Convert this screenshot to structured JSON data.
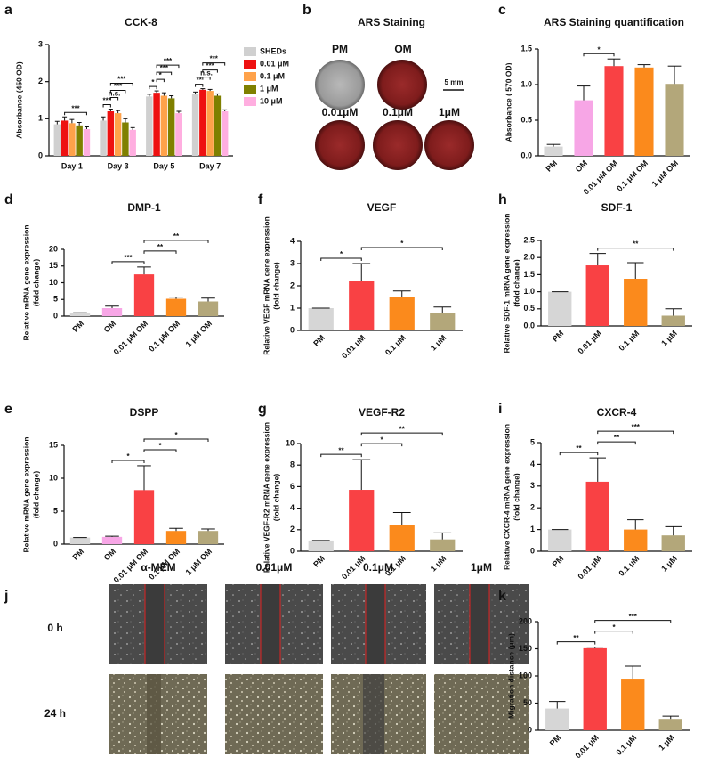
{
  "chart_data": [
    {
      "type": "grouped-bar",
      "panel": "a",
      "title": "CCK-8",
      "ylabel": [
        "Absorbance (450 OD)"
      ],
      "categories": [
        "Day 1",
        "Day 3",
        "Day 5",
        "Day 7"
      ],
      "series": [
        {
          "name": "SHEDs",
          "color": "#d0d0d0",
          "values": [
            0.85,
            0.95,
            1.6,
            1.68
          ],
          "errors": [
            0.08,
            0.1,
            0.06,
            0.04
          ]
        },
        {
          "name": "0.01 μM",
          "color": "#ee1111",
          "values": [
            0.95,
            1.2,
            1.7,
            1.78
          ],
          "errors": [
            0.1,
            0.06,
            0.05,
            0.03
          ]
        },
        {
          "name": "0.1 μM",
          "color": "#ffa24a",
          "values": [
            0.88,
            1.15,
            1.62,
            1.75
          ],
          "errors": [
            0.1,
            0.07,
            0.08,
            0.04
          ]
        },
        {
          "name": "1 μM",
          "color": "#7f8000",
          "values": [
            0.82,
            0.9,
            1.55,
            1.62
          ],
          "errors": [
            0.08,
            0.1,
            0.07,
            0.05
          ]
        },
        {
          "name": "10 μM",
          "color": "#ffaee0",
          "values": [
            0.72,
            0.7,
            1.15,
            1.2
          ],
          "errors": [
            0.06,
            0.06,
            0.05,
            0.04
          ]
        }
      ],
      "ylim": [
        0,
        3
      ],
      "yticks": [
        0,
        1,
        2,
        3
      ],
      "annotations": [
        {
          "label": "***",
          "category": "Day 1",
          "pair": [
            "0.01 μM",
            "10 μM"
          ]
        },
        {
          "label": "***",
          "category": "Day 3",
          "pair": [
            "SHEDs",
            "0.01 μM"
          ]
        },
        {
          "label": "n.s.",
          "category": "Day 3",
          "pair": [
            "0.01 μM",
            "0.1 μM"
          ]
        },
        {
          "label": "***",
          "category": "Day 3",
          "pair": [
            "0.01 μM",
            "1 μM"
          ]
        },
        {
          "label": "***",
          "category": "Day 3",
          "pair": [
            "0.01 μM",
            "10 μM"
          ]
        },
        {
          "label": "*",
          "category": "Day 5",
          "pair": [
            "SHEDs",
            "0.01 μM"
          ]
        },
        {
          "label": "*",
          "category": "Day 5",
          "pair": [
            "0.01 μM",
            "0.1 μM"
          ]
        },
        {
          "label": "***",
          "category": "Day 5",
          "pair": [
            "0.01 μM",
            "1 μM"
          ]
        },
        {
          "label": "***",
          "category": "Day 5",
          "pair": [
            "0.01 μM",
            "10 μM"
          ]
        },
        {
          "label": "**",
          "category": "Day 7",
          "pair": [
            "SHEDs",
            "0.01 μM"
          ]
        },
        {
          "label": "n.s.",
          "category": "Day 7",
          "pair": [
            "0.01 μM",
            "0.1 μM"
          ]
        },
        {
          "label": "***",
          "category": "Day 7",
          "pair": [
            "0.01 μM",
            "1 μM"
          ]
        },
        {
          "label": "***",
          "category": "Day 7",
          "pair": [
            "0.01 μM",
            "10 μM"
          ]
        }
      ]
    },
    {
      "type": "bar",
      "panel": "c",
      "title": "ARS Staining quantification",
      "ylabel": [
        "Absorbance ( 570 OD)"
      ],
      "categories": [
        "PM",
        "OM",
        "0.01 μM OM",
        "0.1 μM OM",
        "1 μM OM"
      ],
      "values": [
        0.13,
        0.78,
        1.26,
        1.24,
        1.01
      ],
      "errors": [
        0.03,
        0.2,
        0.1,
        0.04,
        0.25
      ],
      "colors": [
        "#d6d6d6",
        "#f7a6e6",
        "#f94144",
        "#fb8a1c",
        "#b3a77a"
      ],
      "ylim": [
        0,
        1.5
      ],
      "yticks": [
        {
          "value": 0,
          "label": "0.0"
        },
        0.5,
        {
          "value": 1,
          "label": "1.0"
        },
        1.5
      ],
      "annotations": [
        {
          "label": "*",
          "pair": [
            "OM",
            "0.01 μM OM"
          ]
        }
      ]
    },
    {
      "type": "bar",
      "panel": "d",
      "title": "DMP-1",
      "ylabel": [
        "Relative mRNA gene expression",
        "(fold change)"
      ],
      "categories": [
        "PM",
        "OM",
        "0.01 μM OM",
        "0.1 μM OM",
        "1 μM OM"
      ],
      "values": [
        1,
        2.4,
        12.5,
        5.2,
        4.4
      ],
      "errors": [
        0,
        0.6,
        2.2,
        0.5,
        1
      ],
      "colors": [
        "#d6d6d6",
        "#f7a6e6",
        "#f94144",
        "#fb8a1c",
        "#b3a77a"
      ],
      "ylim": [
        0,
        20
      ],
      "yticks": [
        0,
        5,
        10,
        15,
        20
      ],
      "annotations": [
        {
          "label": "***",
          "pair": [
            "OM",
            "0.01 μM OM"
          ]
        },
        {
          "label": "**",
          "pair": [
            "0.01 μM OM",
            "0.1 μM OM"
          ]
        },
        {
          "label": "**",
          "pair": [
            "0.01 μM OM",
            "1 μM OM"
          ]
        }
      ]
    },
    {
      "type": "bar",
      "panel": "e",
      "title": "DSPP",
      "ylabel": [
        "Relative mRNA gene expression",
        "(fold change)"
      ],
      "categories": [
        "PM",
        "OM",
        "0.01 μM OM",
        "0.1 μM OM",
        "1 μM OM"
      ],
      "values": [
        1,
        1.1,
        8.2,
        2,
        2
      ],
      "errors": [
        0,
        0.1,
        3.7,
        0.4,
        0.3
      ],
      "colors": [
        "#d6d6d6",
        "#f7a6e6",
        "#f94144",
        "#fb8a1c",
        "#b3a77a"
      ],
      "ylim": [
        0,
        15
      ],
      "yticks": [
        0,
        5,
        10,
        15
      ],
      "annotations": [
        {
          "label": "*",
          "pair": [
            "OM",
            "0.01 μM OM"
          ]
        },
        {
          "label": "*",
          "pair": [
            "0.01 μM OM",
            "0.1 μM OM"
          ]
        },
        {
          "label": "*",
          "pair": [
            "0.01 μM OM",
            "1 μM OM"
          ]
        }
      ]
    },
    {
      "type": "bar",
      "panel": "f",
      "title": "VEGF",
      "ylabel": [
        "Relative  VEGF mRNA gene expression",
        "(fold change)"
      ],
      "categories": [
        "PM",
        "0.01 μM",
        "0.1 μM",
        "1 μM"
      ],
      "values": [
        1,
        2.2,
        1.5,
        0.78
      ],
      "errors": [
        0,
        0.8,
        0.27,
        0.27
      ],
      "colors": [
        "#d6d6d6",
        "#f94144",
        "#fb8a1c",
        "#b3a77a"
      ],
      "ylim": [
        0,
        4
      ],
      "yticks": [
        0,
        1,
        2,
        3,
        4
      ],
      "annotations": [
        {
          "label": "*",
          "pair": [
            "PM",
            "0.01 μM"
          ]
        },
        {
          "label": "*",
          "pair": [
            "0.01 μM",
            "1 μM"
          ]
        }
      ]
    },
    {
      "type": "bar",
      "panel": "g",
      "title": "VEGF-R2",
      "ylabel": [
        "Relative  VEGF-R2 mRNA gene expression",
        "(fold change)"
      ],
      "categories": [
        "PM",
        "0.01 μM",
        "0.1 μM",
        "1 μM"
      ],
      "values": [
        1,
        5.7,
        2.4,
        1.1
      ],
      "errors": [
        0,
        2.8,
        1.2,
        0.6
      ],
      "colors": [
        "#d6d6d6",
        "#f94144",
        "#fb8a1c",
        "#b3a77a"
      ],
      "ylim": [
        0,
        10
      ],
      "yticks": [
        0,
        2,
        4,
        6,
        8,
        10
      ],
      "annotations": [
        {
          "label": "**",
          "pair": [
            "PM",
            "0.01 μM"
          ]
        },
        {
          "label": "*",
          "pair": [
            "0.01 μM",
            "0.1 μM"
          ]
        },
        {
          "label": "**",
          "pair": [
            "0.01 μM",
            "1 μM"
          ]
        }
      ]
    },
    {
      "type": "bar",
      "panel": "h",
      "title": "SDF-1",
      "ylabel": [
        "Relative SDF-1 mRNA gene expression",
        "(fold change)"
      ],
      "categories": [
        "PM",
        "0.01 μM",
        "0.1 μM",
        "1 μM"
      ],
      "values": [
        1,
        1.77,
        1.38,
        0.3
      ],
      "errors": [
        0,
        0.35,
        0.47,
        0.2
      ],
      "colors": [
        "#d6d6d6",
        "#f94144",
        "#fb8a1c",
        "#b3a77a"
      ],
      "ylim": [
        0,
        2.5
      ],
      "yticks": [
        {
          "value": 0,
          "label": "0.0"
        },
        0.5,
        {
          "value": 1,
          "label": "1.0"
        },
        1.5,
        {
          "value": 2,
          "label": "2.0"
        },
        2.5
      ],
      "annotations": [
        {
          "label": "**",
          "pair": [
            "0.01 μM",
            "1 μM"
          ]
        }
      ]
    },
    {
      "type": "bar",
      "panel": "i",
      "title": "CXCR-4",
      "ylabel": [
        "Relative CXCR-4 mRNA gene expression",
        "(fold change)"
      ],
      "categories": [
        "PM",
        "0.01 μM",
        "0.1 μM",
        "1 μM"
      ],
      "values": [
        1,
        3.2,
        1,
        0.73
      ],
      "errors": [
        0,
        1.1,
        0.45,
        0.4
      ],
      "colors": [
        "#d6d6d6",
        "#f94144",
        "#fb8a1c",
        "#b3a77a"
      ],
      "ylim": [
        0,
        5
      ],
      "yticks": [
        0,
        1,
        2,
        3,
        4,
        5
      ],
      "annotations": [
        {
          "label": "**",
          "pair": [
            "PM",
            "0.01 μM"
          ]
        },
        {
          "label": "**",
          "pair": [
            "0.01 μM",
            "0.1 μM"
          ]
        },
        {
          "label": "***",
          "pair": [
            "0.01 μM",
            "1 μM"
          ]
        }
      ]
    },
    {
      "type": "bar",
      "panel": "k",
      "title": "",
      "ylabel": [
        "Migration distance (μm)"
      ],
      "categories": [
        "PM",
        "0.01 μM",
        "0.1 μM",
        "1 μM"
      ],
      "values": [
        40,
        151,
        95,
        21
      ],
      "errors": [
        13,
        2,
        23,
        5
      ],
      "colors": [
        "#d6d6d6",
        "#f94144",
        "#fb8a1c",
        "#b3a77a"
      ],
      "ylim": [
        0,
        200
      ],
      "yticks": [
        0,
        50,
        100,
        150,
        200
      ],
      "annotations": [
        {
          "label": "**",
          "pair": [
            "PM",
            "0.01 μM"
          ]
        },
        {
          "label": "*",
          "pair": [
            "0.01 μM",
            "0.1 μM"
          ]
        },
        {
          "label": "***",
          "pair": [
            "0.01 μM",
            "1 μM"
          ]
        }
      ]
    }
  ],
  "figure_b": {
    "panel": "b",
    "title": "ARS Staining",
    "labels": [
      "PM",
      "OM",
      "0.01μM",
      "0.1μM",
      "1μM"
    ],
    "scale": "5 mm"
  },
  "figure_j": {
    "panel": "j",
    "columns": [
      "α-MEM",
      "0.01μM",
      "0.1μM",
      "1μM"
    ],
    "rows": [
      "0 h",
      "24 h"
    ]
  }
}
